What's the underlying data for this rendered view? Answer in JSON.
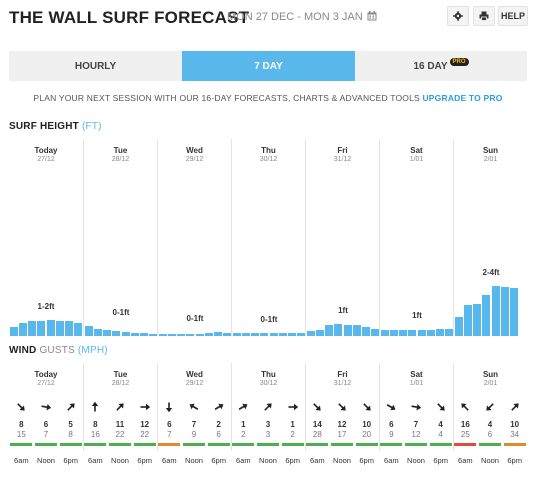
{
  "header": {
    "title": "THE WALL SURF FORECAST",
    "date_range": "MON 27 DEC - MON 3 JAN",
    "help_label": "HELP"
  },
  "tabs": [
    {
      "label": "HOURLY",
      "active": false
    },
    {
      "label": "7 DAY",
      "active": true
    },
    {
      "label": "16 DAY",
      "active": false,
      "badge": "PRO"
    }
  ],
  "promo": {
    "text": "PLAN YOUR NEXT SESSION WITH OUR 16-DAY FORECASTS, CHARTS & ADVANCED TOOLS",
    "link": "UPGRADE TO PRO"
  },
  "surf": {
    "title": "SURF HEIGHT",
    "unit": "(FT)",
    "days": [
      {
        "name": "Today",
        "date": "27/12",
        "range": "1-2ft",
        "heights": [
          0.55,
          0.8,
          0.9,
          0.95,
          1.0,
          0.95,
          0.9,
          0.8
        ]
      },
      {
        "name": "Tue",
        "date": "28/12",
        "range": "0-1ft",
        "heights": [
          0.6,
          0.45,
          0.35,
          0.3,
          0.25,
          0.2,
          0.18,
          0.15
        ]
      },
      {
        "name": "Wed",
        "date": "29/12",
        "range": "0-1ft",
        "heights": [
          0.1,
          0.1,
          0.1,
          0.12,
          0.15,
          0.2,
          0.22,
          0.2
        ]
      },
      {
        "name": "Thu",
        "date": "30/12",
        "range": "0-1ft",
        "heights": [
          0.18,
          0.18,
          0.18,
          0.18,
          0.2,
          0.2,
          0.2,
          0.2
        ]
      },
      {
        "name": "Fri",
        "date": "31/12",
        "range": "1ft",
        "heights": [
          0.3,
          0.4,
          0.7,
          0.75,
          0.7,
          0.65,
          0.55,
          0.45
        ]
      },
      {
        "name": "Sat",
        "date": "1/01",
        "range": "1ft",
        "heights": [
          0.35,
          0.35,
          0.35,
          0.4,
          0.4,
          0.4,
          0.45,
          0.45
        ]
      },
      {
        "name": "Sun",
        "date": "2/01",
        "range": "2-4ft",
        "heights": [
          1.15,
          1.9,
          1.95,
          2.5,
          3.05,
          3.0,
          2.95
        ]
      }
    ]
  },
  "wind": {
    "title": "WIND",
    "subtitle": "GUSTS",
    "unit": "(MPH)",
    "days": [
      {
        "name": "Today",
        "date": "27/12",
        "slots": [
          {
            "time": "6am",
            "speed": "8",
            "gust": "15",
            "dir": 135,
            "color": "#4caf50"
          },
          {
            "time": "Noon",
            "speed": "6",
            "gust": "7",
            "dir": 100,
            "color": "#4caf50"
          },
          {
            "time": "6pm",
            "speed": "5",
            "gust": "8",
            "dir": 45,
            "color": "#4caf50"
          }
        ]
      },
      {
        "name": "Tue",
        "date": "28/12",
        "slots": [
          {
            "time": "6am",
            "speed": "8",
            "gust": "16",
            "dir": 0,
            "color": "#4caf50"
          },
          {
            "time": "Noon",
            "speed": "11",
            "gust": "22",
            "dir": 45,
            "color": "#4caf50"
          },
          {
            "time": "6pm",
            "speed": "12",
            "gust": "22",
            "dir": 90,
            "color": "#4caf50"
          }
        ]
      },
      {
        "name": "Wed",
        "date": "29/12",
        "slots": [
          {
            "time": "6am",
            "speed": "6",
            "gust": "7",
            "dir": 180,
            "color": "#e08a2e"
          },
          {
            "time": "Noon",
            "speed": "7",
            "gust": "9",
            "dir": 300,
            "color": "#4caf50"
          },
          {
            "time": "6pm",
            "speed": "2",
            "gust": "6",
            "dir": 60,
            "color": "#4caf50"
          }
        ]
      },
      {
        "name": "Thu",
        "date": "30/12",
        "slots": [
          {
            "time": "6am",
            "speed": "1",
            "gust": "2",
            "dir": 60,
            "color": "#4caf50"
          },
          {
            "time": "Noon",
            "speed": "3",
            "gust": "3",
            "dir": 45,
            "color": "#4caf50"
          },
          {
            "time": "6pm",
            "speed": "1",
            "gust": "2",
            "dir": 90,
            "color": "#4caf50"
          }
        ]
      },
      {
        "name": "Fri",
        "date": "31/12",
        "slots": [
          {
            "time": "6am",
            "speed": "14",
            "gust": "28",
            "dir": 135,
            "color": "#4caf50"
          },
          {
            "time": "Noon",
            "speed": "12",
            "gust": "17",
            "dir": 135,
            "color": "#4caf50"
          },
          {
            "time": "6pm",
            "speed": "10",
            "gust": "20",
            "dir": 135,
            "color": "#4caf50"
          }
        ]
      },
      {
        "name": "Sat",
        "date": "1/01",
        "slots": [
          {
            "time": "6am",
            "speed": "6",
            "gust": "9",
            "dir": 120,
            "color": "#4caf50"
          },
          {
            "time": "Noon",
            "speed": "7",
            "gust": "12",
            "dir": 100,
            "color": "#4caf50"
          },
          {
            "time": "6pm",
            "speed": "4",
            "gust": "4",
            "dir": 135,
            "color": "#4caf50"
          }
        ]
      },
      {
        "name": "Sun",
        "date": "2/01",
        "slots": [
          {
            "time": "6am",
            "speed": "16",
            "gust": "25",
            "dir": 315,
            "color": "#e04b3c"
          },
          {
            "time": "Noon",
            "speed": "4",
            "gust": "6",
            "dir": 225,
            "color": "#4caf50"
          },
          {
            "time": "6pm",
            "speed": "10",
            "gust": "34",
            "dir": 45,
            "color": "#e08a2e"
          }
        ]
      }
    ]
  },
  "chart_data": {
    "type": "bar",
    "title": "SURF HEIGHT (FT)",
    "series": [
      {
        "name": "Today 27/12",
        "values": [
          0.55,
          0.8,
          0.9,
          0.95,
          1.0,
          0.95,
          0.9,
          0.8
        ]
      },
      {
        "name": "Tue 28/12",
        "values": [
          0.6,
          0.45,
          0.35,
          0.3,
          0.25,
          0.2,
          0.18,
          0.15
        ]
      },
      {
        "name": "Wed 29/12",
        "values": [
          0.1,
          0.1,
          0.1,
          0.12,
          0.15,
          0.2,
          0.22,
          0.2
        ]
      },
      {
        "name": "Thu 30/12",
        "values": [
          0.18,
          0.18,
          0.18,
          0.18,
          0.2,
          0.2,
          0.2,
          0.2
        ]
      },
      {
        "name": "Fri 31/12",
        "values": [
          0.3,
          0.4,
          0.7,
          0.75,
          0.7,
          0.65,
          0.55,
          0.45
        ]
      },
      {
        "name": "Sat 1/01",
        "values": [
          0.35,
          0.35,
          0.35,
          0.4,
          0.4,
          0.4,
          0.45,
          0.45
        ]
      },
      {
        "name": "Sun 2/01",
        "values": [
          1.15,
          1.9,
          1.95,
          2.5,
          3.05,
          3.0,
          2.95
        ]
      }
    ],
    "ylim": [
      0,
      3.2
    ],
    "grid": false
  }
}
